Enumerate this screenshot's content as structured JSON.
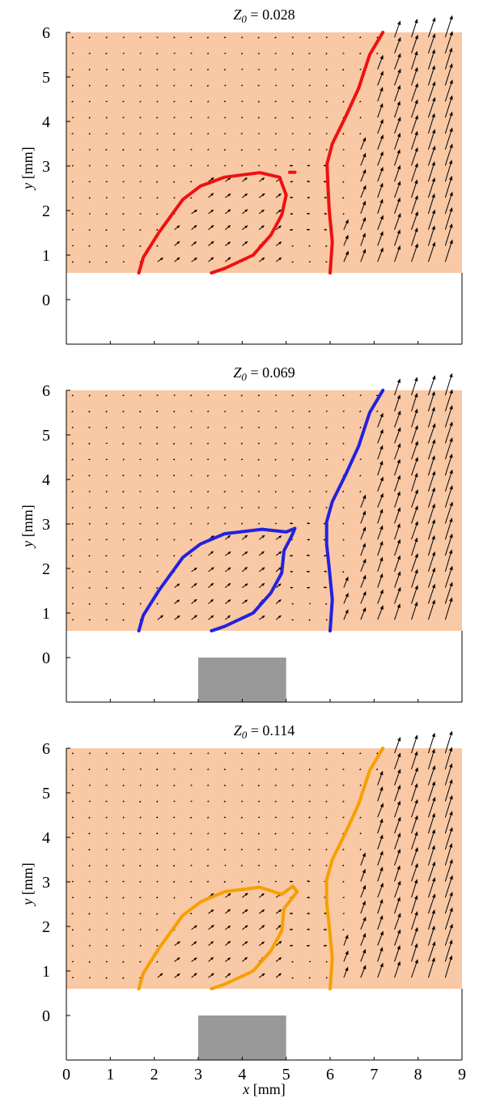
{
  "figure": {
    "x_tick_labels": [
      "0",
      "1",
      "2",
      "3",
      "4",
      "5",
      "6",
      "7",
      "8",
      "9"
    ],
    "xlabel_var": "x",
    "xlabel_unit": "[mm]"
  },
  "chart_data": [
    {
      "type": "quiver",
      "title_var": "Z",
      "title_sub": "0",
      "title_value": "= 0.028",
      "ylabel_var": "y",
      "ylabel_unit": "[mm]",
      "xlim": [
        0,
        9
      ],
      "ylim": [
        -1.0,
        6.0
      ],
      "y_ticks": [
        0,
        1,
        2,
        3,
        4,
        5,
        6
      ],
      "y_tick_labels": [
        "0",
        "1",
        "2",
        "3",
        "4",
        "5",
        "6"
      ],
      "shaded_region_y_min": 0.6,
      "shaded_region_color": "#f9c8a4",
      "contour_color": "#ee1111",
      "obstacle": null,
      "obstacle_color": "#999999",
      "arrow_color": "#000000",
      "contours": [
        [
          [
            1.65,
            0.6
          ],
          [
            1.75,
            0.95
          ],
          [
            2.1,
            1.5
          ],
          [
            2.65,
            2.25
          ],
          [
            3.05,
            2.55
          ],
          [
            3.6,
            2.75
          ],
          [
            4.4,
            2.85
          ],
          [
            4.85,
            2.75
          ],
          [
            5.0,
            2.35
          ],
          [
            4.9,
            1.9
          ],
          [
            4.65,
            1.45
          ],
          [
            4.25,
            1.0
          ],
          [
            3.6,
            0.7
          ],
          [
            3.3,
            0.6
          ]
        ],
        [
          [
            6.0,
            0.6
          ],
          [
            6.05,
            1.3
          ],
          [
            5.98,
            2.0
          ],
          [
            5.95,
            2.55
          ],
          [
            5.93,
            3.05
          ],
          [
            6.05,
            3.5
          ],
          [
            6.35,
            4.1
          ],
          [
            6.65,
            4.75
          ],
          [
            6.9,
            5.5
          ],
          [
            7.2,
            6.0
          ]
        ],
        [
          [
            5.08,
            2.86
          ],
          [
            5.2,
            2.86
          ]
        ]
      ]
    },
    {
      "type": "quiver",
      "title_var": "Z",
      "title_sub": "0",
      "title_value": "= 0.069",
      "ylabel_var": "y",
      "ylabel_unit": "[mm]",
      "xlim": [
        0,
        9
      ],
      "ylim": [
        -1.0,
        6.0
      ],
      "y_ticks": [
        0,
        1,
        2,
        3,
        4,
        5,
        6
      ],
      "y_tick_labels": [
        "0",
        "1",
        "2",
        "3",
        "4",
        "5",
        "6"
      ],
      "shaded_region_y_min": 0.6,
      "shaded_region_color": "#f9c8a4",
      "contour_color": "#2222dd",
      "obstacle": {
        "x": [
          3.0,
          5.0
        ],
        "y": [
          -1.0,
          0.0
        ]
      },
      "obstacle_color": "#999999",
      "arrow_color": "#000000",
      "contours": [
        [
          [
            1.65,
            0.6
          ],
          [
            1.75,
            0.95
          ],
          [
            2.1,
            1.5
          ],
          [
            2.65,
            2.25
          ],
          [
            3.05,
            2.55
          ],
          [
            3.6,
            2.78
          ],
          [
            4.45,
            2.88
          ],
          [
            5.0,
            2.82
          ],
          [
            5.2,
            2.9
          ],
          [
            5.12,
            2.72
          ],
          [
            4.95,
            2.4
          ],
          [
            4.9,
            1.9
          ],
          [
            4.65,
            1.45
          ],
          [
            4.25,
            1.0
          ],
          [
            3.6,
            0.7
          ],
          [
            3.3,
            0.6
          ]
        ],
        [
          [
            6.0,
            0.6
          ],
          [
            6.05,
            1.3
          ],
          [
            5.98,
            2.0
          ],
          [
            5.92,
            2.55
          ],
          [
            5.92,
            3.05
          ],
          [
            6.05,
            3.5
          ],
          [
            6.35,
            4.1
          ],
          [
            6.65,
            4.75
          ],
          [
            6.9,
            5.5
          ],
          [
            7.2,
            6.0
          ]
        ]
      ]
    },
    {
      "type": "quiver",
      "title_var": "Z",
      "title_sub": "0",
      "title_value": "= 0.114",
      "ylabel_var": "y",
      "ylabel_unit": "[mm]",
      "xlim": [
        0,
        9
      ],
      "ylim": [
        -1.0,
        6.0
      ],
      "y_ticks": [
        0,
        1,
        2,
        3,
        4,
        5,
        6
      ],
      "y_tick_labels": [
        "0",
        "1",
        "2",
        "3",
        "4",
        "5",
        "6"
      ],
      "shaded_region_y_min": 0.6,
      "shaded_region_color": "#f9c8a4",
      "contour_color": "#f5a000",
      "obstacle": {
        "x": [
          3.0,
          5.0
        ],
        "y": [
          -1.0,
          0.0
        ]
      },
      "obstacle_color": "#999999",
      "arrow_color": "#000000",
      "contours": [
        [
          [
            1.65,
            0.6
          ],
          [
            1.75,
            0.95
          ],
          [
            2.1,
            1.5
          ],
          [
            2.65,
            2.25
          ],
          [
            3.05,
            2.55
          ],
          [
            3.6,
            2.78
          ],
          [
            4.4,
            2.88
          ],
          [
            4.9,
            2.72
          ],
          [
            5.15,
            2.9
          ],
          [
            5.25,
            2.78
          ],
          [
            4.95,
            2.4
          ],
          [
            4.9,
            1.9
          ],
          [
            4.65,
            1.45
          ],
          [
            4.25,
            1.0
          ],
          [
            3.6,
            0.7
          ],
          [
            3.3,
            0.6
          ]
        ],
        [
          [
            6.0,
            0.6
          ],
          [
            6.05,
            1.3
          ],
          [
            5.98,
            2.0
          ],
          [
            5.92,
            2.55
          ],
          [
            5.92,
            3.05
          ],
          [
            6.05,
            3.5
          ],
          [
            6.35,
            4.1
          ],
          [
            6.65,
            4.75
          ],
          [
            6.9,
            5.5
          ],
          [
            7.2,
            6.0
          ]
        ]
      ]
    }
  ]
}
